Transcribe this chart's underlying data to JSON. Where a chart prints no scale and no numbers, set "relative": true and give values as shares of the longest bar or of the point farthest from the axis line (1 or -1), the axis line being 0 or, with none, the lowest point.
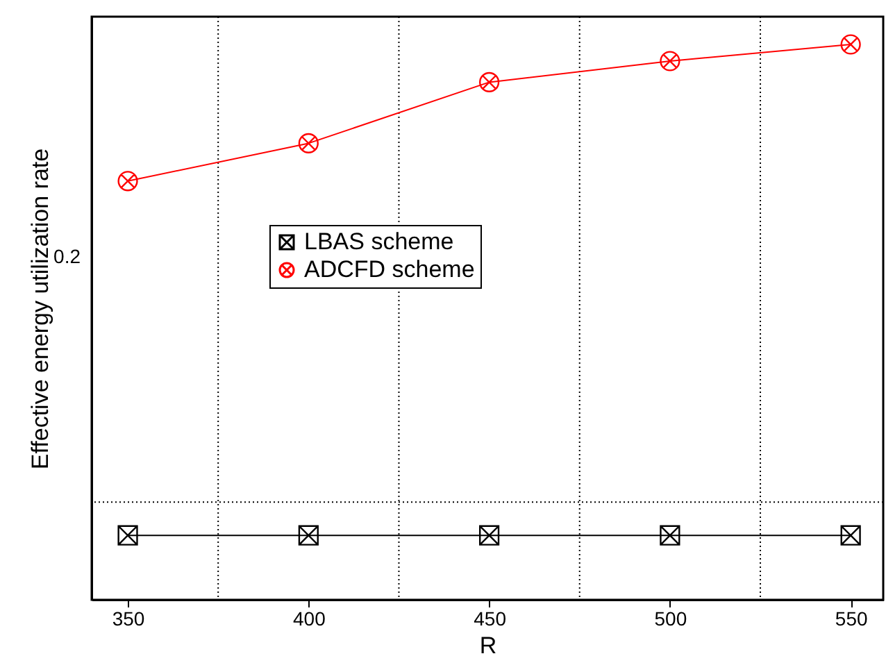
{
  "chart_data": {
    "type": "line",
    "xlabel": "R",
    "ylabel": "Effective energy utilization rate",
    "x": [
      350,
      400,
      450,
      500,
      550
    ],
    "xlim": [
      340,
      559
    ],
    "xticks": [
      350,
      400,
      450,
      500,
      550
    ],
    "relative": true,
    "series": [
      {
        "name": "LBAS scheme",
        "color": "#000000",
        "marker": "cross",
        "values": [
          0.116,
          0.116,
          0.116,
          0.116,
          0.116
        ]
      },
      {
        "name": "ADCFD scheme",
        "color": "#ff0000",
        "marker": "cross",
        "values": [
          0.754,
          0.822,
          0.932,
          0.97,
          1.0
        ]
      }
    ],
    "annotations": [
      "0.2"
    ],
    "ref_lines": [
      {
        "axis": "x",
        "value": 375,
        "line_style": "dotted"
      },
      {
        "axis": "x",
        "value": 425,
        "line_style": "dotted"
      },
      {
        "axis": "x",
        "value": 475,
        "line_style": "dotted"
      },
      {
        "axis": "x",
        "value": 525,
        "line_style": "dotted"
      },
      {
        "axis": "y",
        "value": 0.176,
        "line_style": "dotted"
      }
    ],
    "legend": "left",
    "grid": false
  }
}
